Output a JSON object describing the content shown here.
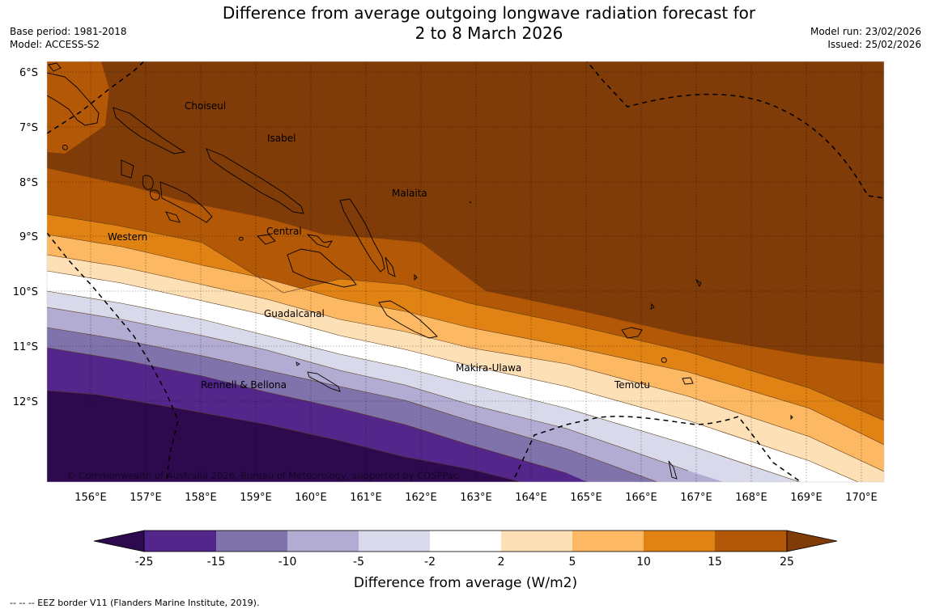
{
  "title": {
    "line1": "Difference from average outgoing longwave radiation forecast for",
    "line2": "2 to 8 March 2026"
  },
  "meta_left": {
    "base_period": "Base period: 1981-2018",
    "model": "Model: ACCESS-S2"
  },
  "meta_right": {
    "model_run": "Model run: 23/02/2026",
    "issued": "Issued: 25/02/2026"
  },
  "map": {
    "lat_labels": [
      "6°S",
      "7°S",
      "8°S",
      "9°S",
      "10°S",
      "11°S",
      "12°S"
    ],
    "lon_labels": [
      "156°E",
      "157°E",
      "158°E",
      "159°E",
      "160°E",
      "161°E",
      "162°E",
      "163°E",
      "164°E",
      "165°E",
      "166°E",
      "167°E",
      "168°E",
      "169°E",
      "170°E"
    ],
    "region_labels": {
      "choiseul": "Choiseul",
      "isabel": "Isabel",
      "malaita": "Malaita",
      "western": "Western",
      "central": "Central",
      "guadalcanal": "Guadalcanal",
      "makira": "Makira-Ulawa",
      "temotu": "Temotu",
      "rennell": "Rennell & Bellona"
    },
    "copyright": "© Commonwealth of Australia 2026, Bureau of Meteorology, supported by COSPPac"
  },
  "colorbar": {
    "ticks": [
      "-25",
      "-15",
      "-10",
      "-5",
      "-2",
      "2",
      "5",
      "10",
      "15",
      "25"
    ],
    "label": "Difference from average (W/m2)",
    "colors": [
      "#2d0a4e",
      "#52268b",
      "#8073ac",
      "#b2abd2",
      "#d8daeb",
      "#ffffff",
      "#fee0b6",
      "#fdb863",
      "#e08214",
      "#b35806",
      "#7f3b08"
    ]
  },
  "footer": "--  --  -- EEZ border V11 (Flanders Marine Institute, 2019)."
}
